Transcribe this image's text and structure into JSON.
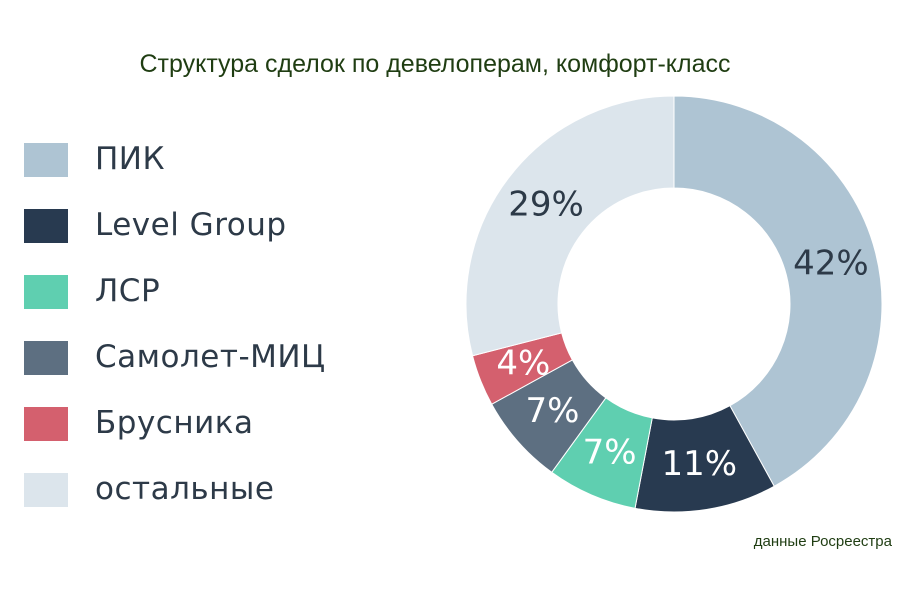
{
  "title": "Структура сделок по девелоперам, комфорт-класс",
  "source_note": "данные Росреестра",
  "chart_data": {
    "type": "pie",
    "title": "Структура сделок по девелоперам, комфорт-класс",
    "donut": true,
    "legend_position": "left",
    "start_angle_deg": 0,
    "direction": "clockwise",
    "unit": "%",
    "series": [
      {
        "name": "ПИК",
        "value": 42,
        "label": "42%",
        "color": "#aec4d3",
        "label_color": "#2d3a48"
      },
      {
        "name": "Level Group",
        "value": 11,
        "label": "11%",
        "color": "#283a50",
        "label_color": "#ffffff"
      },
      {
        "name": "ЛСР",
        "value": 7,
        "label": "7%",
        "color": "#5fcfb0",
        "label_color": "#ffffff"
      },
      {
        "name": "Самолет-МИЦ",
        "value": 7,
        "label": "7%",
        "color": "#5d6f81",
        "label_color": "#ffffff"
      },
      {
        "name": "Брусника",
        "value": 4,
        "label": "4%",
        "color": "#d4606e",
        "label_color": "#ffffff"
      },
      {
        "name": "остальные",
        "value": 29,
        "label": "29%",
        "color": "#dce5ec",
        "label_color": "#2d3a48"
      }
    ]
  }
}
